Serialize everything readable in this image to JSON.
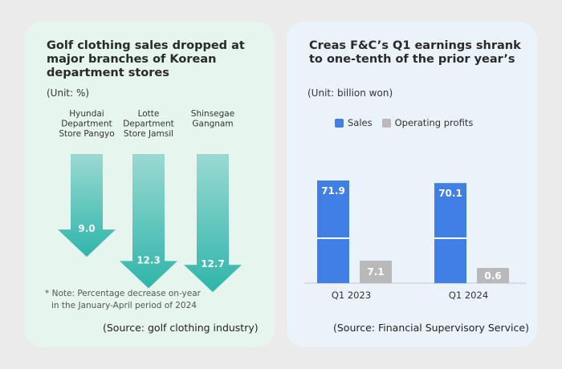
{
  "colors": {
    "left_bg": "#e6f5ee",
    "right_bg": "#e9f3f9",
    "arrow_top": "#9ad9d2",
    "arrow_bottom": "#2fb5aa",
    "sales": "#3f7fe6",
    "profit": "#b9b9b9"
  },
  "left": {
    "title": "Golf clothing sales dropped at major branches of Korean department stores",
    "unit": "(Unit: %)",
    "note_line1": "* Note: Percentage decrease on-year",
    "note_line2": "in the January-April period of 2024",
    "source": "(Source: golf clothing industry)"
  },
  "right": {
    "title": "Creas F&C’s Q1 earnings shrank to one-tenth of the prior year’s",
    "unit": "(Unit: billion won)",
    "legend_sales": "Sales",
    "legend_profits": "Operating profits",
    "source": "(Source: Financial Supervisory Service)"
  },
  "chart_data": [
    {
      "type": "bar",
      "categories": [
        "Hyundai Department Store Pangyo",
        "Lotte Department Store Jamsil",
        "Shinsegae Gangnam"
      ],
      "category_lines": [
        [
          "Hyundai",
          "Department",
          "Store Pangyo"
        ],
        [
          "Lotte",
          "Department",
          "Store Jamsil"
        ],
        [
          "Shinsegae",
          "Gangnam"
        ]
      ],
      "values": [
        9.0,
        12.3,
        12.7
      ],
      "value_labels": [
        "9.0",
        "12.3",
        "12.7"
      ],
      "direction": "down",
      "title": "Golf clothing sales dropped at major branches of Korean department stores"
    },
    {
      "type": "bar",
      "categories": [
        "Q1  2023",
        "Q1  2024"
      ],
      "series": [
        {
          "name": "Sales",
          "values": [
            71.9,
            70.1
          ],
          "labels": [
            "71.9",
            "70.1"
          ],
          "color": "#3f7fe6"
        },
        {
          "name": "Operating profits",
          "values": [
            7.1,
            0.6
          ],
          "labels": [
            "7.1",
            "0.6"
          ],
          "color": "#b9b9b9"
        }
      ],
      "axis_break": true,
      "title": "Creas F&C’s Q1 earnings shrank to one-tenth of the prior year’s"
    }
  ]
}
